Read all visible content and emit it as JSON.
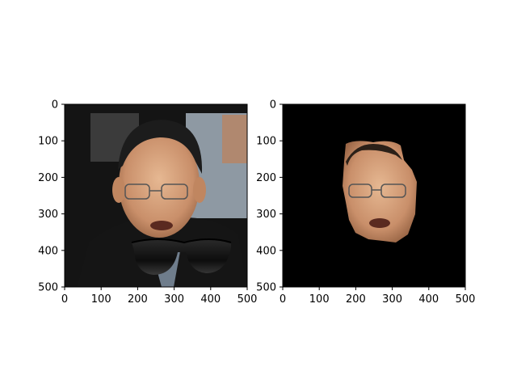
{
  "chart_data": [
    {
      "type": "image",
      "title": "",
      "xlabel": "",
      "ylabel": "",
      "xlim": [
        0,
        500
      ],
      "ylim": [
        500,
        0
      ],
      "xticks": [
        0,
        100,
        200,
        300,
        400,
        500
      ],
      "yticks": [
        0,
        100,
        200,
        300,
        400,
        500
      ],
      "content": "photo-with-sunglasses-overlay",
      "colors": {
        "background": "#141414",
        "skin": "#d9a882",
        "hair": "#1c1c1c",
        "jacket": "#151515",
        "lenses": "#111111"
      }
    },
    {
      "type": "image",
      "title": "",
      "xlabel": "",
      "ylabel": "",
      "xlim": [
        0,
        500
      ],
      "ylim": [
        500,
        0
      ],
      "xticks": [
        0,
        100,
        200,
        300,
        400,
        500
      ],
      "yticks": [
        0,
        100,
        200,
        300,
        400,
        500
      ],
      "content": "segmented-face-mask",
      "colors": {
        "background": "#000000",
        "skin": "#d9a882"
      }
    }
  ]
}
